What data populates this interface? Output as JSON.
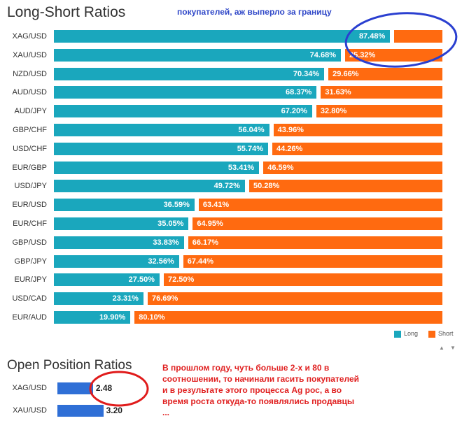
{
  "long_short": {
    "title": "Long-Short Ratios",
    "annotation": "покупателей, аж выперло за границу",
    "legend": [
      {
        "label": "Long",
        "color": "#1aa7bd"
      },
      {
        "label": "Short",
        "color": "#ff6a10"
      }
    ],
    "pager": {
      "prev_icon": "triangle-up-icon",
      "next_icon": "triangle-down-icon"
    }
  },
  "open_position": {
    "title": "Open Position Ratios",
    "annotation_lines": [
      "В прошлом году, чуть больше 2-х и 80 в",
      "соотношении, то начинали гасить покупателей",
      "и в результате этого процесса Ag рос, а во",
      "время роста откуда-то появлялись продавцы",
      "..."
    ]
  },
  "chart_data": [
    {
      "type": "bar",
      "title": "Long-Short Ratios",
      "categories": [
        "XAG/USD",
        "XAU/USD",
        "NZD/USD",
        "AUD/USD",
        "AUD/JPY",
        "GBP/CHF",
        "USD/CHF",
        "EUR/GBP",
        "USD/JPY",
        "EUR/USD",
        "EUR/CHF",
        "GBP/USD",
        "GBP/JPY",
        "EUR/JPY",
        "USD/CAD",
        "EUR/AUD"
      ],
      "series": [
        {
          "name": "Long",
          "color": "#1aa7bd",
          "values": [
            87.48,
            74.68,
            70.34,
            68.37,
            67.2,
            56.04,
            55.74,
            53.41,
            49.72,
            36.59,
            35.05,
            33.83,
            32.56,
            27.5,
            23.31,
            19.9
          ],
          "labels": [
            "87.48%",
            "74.68%",
            "70.34%",
            "68.37%",
            "67.20%",
            "56.04%",
            "55.74%",
            "53.41%",
            "49.72%",
            "36.59%",
            "35.05%",
            "33.83%",
            "32.56%",
            "27.50%",
            "23.31%",
            "19.90%"
          ]
        },
        {
          "name": "Short",
          "color": "#ff6a10",
          "values": [
            12.52,
            25.32,
            29.66,
            31.63,
            32.8,
            43.96,
            44.26,
            46.59,
            50.28,
            63.41,
            64.95,
            66.17,
            67.44,
            72.5,
            76.69,
            80.1
          ],
          "labels": [
            "",
            "25.32%",
            "29.66%",
            "31.63%",
            "32.80%",
            "43.96%",
            "44.26%",
            "46.59%",
            "50.28%",
            "63.41%",
            "64.95%",
            "66.17%",
            "67.44%",
            "72.50%",
            "76.69%",
            "80.10%"
          ]
        }
      ],
      "stacked": true,
      "orientation": "horizontal",
      "xlim": [
        0,
        100
      ],
      "legend_position": "bottom-right"
    },
    {
      "type": "bar",
      "title": "Open Position Ratios",
      "categories": [
        "XAG/USD",
        "XAU/USD"
      ],
      "values": [
        2.48,
        3.2
      ],
      "labels": [
        "2.48",
        "3.20"
      ],
      "orientation": "horizontal",
      "color": "#2f6fd6"
    }
  ]
}
